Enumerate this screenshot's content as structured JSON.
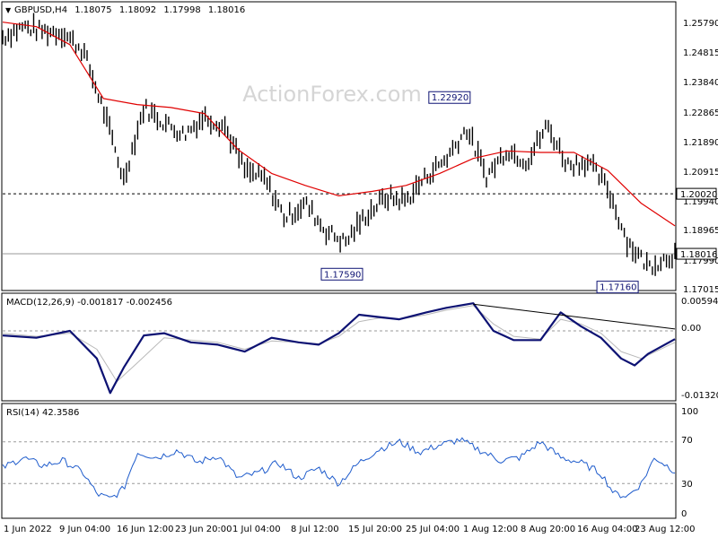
{
  "watermark": "ActionForex.com",
  "colors": {
    "candle": "#000000",
    "ma": "#e00000",
    "macd_line": "#0d1273",
    "macd_signal": "#b9b9b9",
    "rsi": "#1f5ccc",
    "grid": "#9a9a9a",
    "tag_border": "#0d1273"
  },
  "chart_data": [
    {
      "type": "line",
      "panel": "price",
      "header": {
        "symbol": "GBPUSD,H4",
        "open": "1.18075",
        "high": "1.18092",
        "low": "1.17998",
        "close": "1.18016"
      },
      "y_ticks": [
        "1.25790",
        "1.24815",
        "1.23840",
        "1.22865",
        "1.21890",
        "1.20915",
        "1.19940",
        "1.18965",
        "1.17990",
        "1.17015"
      ],
      "ylim": [
        1.1685,
        1.2625
      ],
      "resistance_level": {
        "value": 1.2002,
        "label": "1.20020"
      },
      "current_price": {
        "value": 1.18016,
        "label": "1.18016"
      },
      "annotations": [
        {
          "x": 0.51,
          "value": 1.1759,
          "label": "1.17590",
          "position": "below"
        },
        {
          "x": 0.92,
          "value": 1.1716,
          "label": "1.17160",
          "position": "below"
        },
        {
          "x": 0.67,
          "value": 1.2292,
          "label": "1.22920",
          "position": "above"
        }
      ],
      "series": [
        {
          "role": "close",
          "x": [
            0.0,
            0.03,
            0.06,
            0.09,
            0.12,
            0.15,
            0.18,
            0.21,
            0.24,
            0.27,
            0.3,
            0.33,
            0.36,
            0.39,
            0.42,
            0.45,
            0.48,
            0.51,
            0.54,
            0.57,
            0.6,
            0.63,
            0.66,
            0.69,
            0.72,
            0.75,
            0.78,
            0.81,
            0.84,
            0.87,
            0.9,
            0.93,
            0.96,
            1.0
          ],
          "values": [
            1.2525,
            1.256,
            1.2545,
            1.254,
            1.248,
            1.228,
            1.205,
            1.229,
            1.224,
            1.22,
            1.226,
            1.223,
            1.208,
            1.205,
            1.192,
            1.197,
            1.188,
            1.184,
            1.193,
            1.199,
            1.198,
            1.206,
            1.212,
            1.222,
            1.206,
            1.215,
            1.211,
            1.223,
            1.21,
            1.211,
            1.202,
            1.184,
            1.176,
            1.1802
          ]
        },
        {
          "role": "moving_average",
          "x": [
            0.0,
            0.05,
            0.1,
            0.15,
            0.2,
            0.25,
            0.3,
            0.35,
            0.4,
            0.45,
            0.5,
            0.55,
            0.6,
            0.65,
            0.7,
            0.75,
            0.8,
            0.85,
            0.9,
            0.95,
            1.0
          ],
          "values": [
            1.2575,
            1.256,
            1.25,
            1.232,
            1.23,
            1.229,
            1.227,
            1.215,
            1.207,
            1.203,
            1.1995,
            1.201,
            1.203,
            1.207,
            1.212,
            1.2145,
            1.214,
            1.214,
            1.208,
            1.197,
            1.1895
          ]
        }
      ]
    },
    {
      "type": "line",
      "panel": "macd",
      "label": "MACD(12,26,9) -0.001817 -0.002456",
      "y_ticks": [
        "0.005941",
        "0.00",
        "-0.013207"
      ],
      "ylim": [
        -0.0148,
        0.0072
      ],
      "series": [
        {
          "role": "macd",
          "x": [
            0.0,
            0.05,
            0.1,
            0.14,
            0.16,
            0.18,
            0.21,
            0.24,
            0.28,
            0.32,
            0.36,
            0.4,
            0.44,
            0.47,
            0.5,
            0.53,
            0.56,
            0.59,
            0.63,
            0.66,
            0.7,
            0.73,
            0.76,
            0.8,
            0.83,
            0.86,
            0.89,
            0.92,
            0.94,
            0.96,
            1.0
          ],
          "values": [
            -0.001,
            -0.0015,
            0.0,
            -0.006,
            -0.0135,
            -0.008,
            -0.001,
            -0.0005,
            -0.0025,
            -0.003,
            -0.0045,
            -0.0015,
            -0.0025,
            -0.003,
            -0.0005,
            0.0035,
            0.003,
            0.0025,
            0.004,
            0.005,
            0.006,
            0.0,
            -0.002,
            -0.002,
            0.004,
            0.001,
            -0.0015,
            -0.006,
            -0.0075,
            -0.005,
            -0.0018
          ]
        },
        {
          "role": "signal",
          "x": [
            0.0,
            0.05,
            0.1,
            0.14,
            0.17,
            0.2,
            0.24,
            0.28,
            0.32,
            0.36,
            0.4,
            0.44,
            0.47,
            0.5,
            0.53,
            0.56,
            0.59,
            0.63,
            0.66,
            0.7,
            0.73,
            0.76,
            0.8,
            0.83,
            0.86,
            0.89,
            0.92,
            0.95,
            1.0
          ],
          "values": [
            -0.0005,
            -0.0012,
            -0.0005,
            -0.004,
            -0.011,
            -0.007,
            -0.0015,
            -0.002,
            -0.0025,
            -0.004,
            -0.0022,
            -0.0025,
            -0.0028,
            -0.0012,
            0.002,
            0.0028,
            0.0025,
            0.0035,
            0.0045,
            0.0055,
            0.0015,
            -0.0012,
            -0.0018,
            0.0025,
            0.0015,
            -0.0005,
            -0.0045,
            -0.006,
            -0.0025
          ]
        }
      ],
      "trendline": {
        "x": [
          0.7,
          1.0
        ],
        "values": [
          0.0058,
          0.0004
        ]
      }
    },
    {
      "type": "line",
      "panel": "rsi",
      "label": "RSI(14) 42.3586",
      "y_ticks": [
        "100",
        "70",
        "30",
        "0"
      ],
      "ylim": [
        0,
        100
      ],
      "levels": [
        70,
        30
      ],
      "series": [
        {
          "role": "rsi",
          "x": [
            0.0,
            0.03,
            0.06,
            0.09,
            0.12,
            0.14,
            0.16,
            0.18,
            0.2,
            0.23,
            0.26,
            0.29,
            0.32,
            0.35,
            0.38,
            0.41,
            0.44,
            0.47,
            0.5,
            0.53,
            0.56,
            0.59,
            0.62,
            0.65,
            0.68,
            0.71,
            0.74,
            0.77,
            0.8,
            0.83,
            0.86,
            0.89,
            0.91,
            0.93,
            0.95,
            0.97,
            1.0
          ],
          "values": [
            45,
            55,
            47,
            52,
            40,
            20,
            15,
            25,
            60,
            55,
            62,
            50,
            57,
            35,
            40,
            50,
            35,
            45,
            30,
            50,
            63,
            70,
            60,
            67,
            72,
            62,
            52,
            55,
            70,
            55,
            50,
            40,
            20,
            18,
            30,
            55,
            42
          ]
        }
      ]
    }
  ],
  "x_ticks": [
    {
      "pos": 0.0,
      "label": "1 Jun 2022"
    },
    {
      "pos": 0.087,
      "label": "9 Jun 04:00"
    },
    {
      "pos": 0.172,
      "label": "16 Jun 12:00"
    },
    {
      "pos": 0.259,
      "label": "23 Jun 20:00"
    },
    {
      "pos": 0.344,
      "label": "1 Jul 04:00"
    },
    {
      "pos": 0.431,
      "label": "8 Jul 12:00"
    },
    {
      "pos": 0.516,
      "label": "15 Jul 20:00"
    },
    {
      "pos": 0.603,
      "label": "25 Jul 04:00"
    },
    {
      "pos": 0.688,
      "label": "1 Aug 12:00"
    },
    {
      "pos": 0.775,
      "label": "8 Aug 20:00"
    },
    {
      "pos": 0.86,
      "label": "16 Aug 04:00"
    },
    {
      "pos": 0.947,
      "label": "23 Aug 12:00"
    }
  ]
}
